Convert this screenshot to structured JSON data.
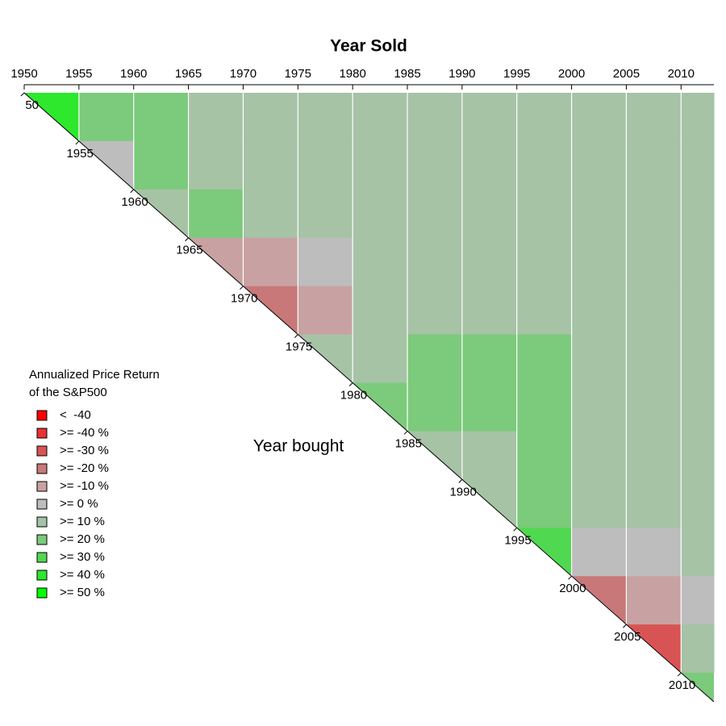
{
  "chart_data": {
    "type": "heatmap",
    "title": "Year Sold",
    "ylabel": "Year bought",
    "legend_title": [
      "Annualized Price Return",
      "of the S&P500"
    ],
    "bins": [
      1950,
      1955,
      1960,
      1965,
      1970,
      1975,
      1980,
      1985,
      1990,
      1995,
      2000,
      2005,
      2010,
      2013
    ],
    "xlim": [
      1950,
      2013
    ],
    "ylim": [
      1950,
      2013
    ],
    "xticks": [
      1950,
      1955,
      1960,
      1965,
      1970,
      1975,
      1980,
      1985,
      1990,
      1995,
      2000,
      2005,
      2010
    ],
    "yticks": [
      {
        "value": 1950,
        "label": "50"
      },
      1955,
      1960,
      1965,
      1970,
      1975,
      1980,
      1985,
      1990,
      1995,
      2000,
      2005,
      2010
    ],
    "z": [
      [
        45,
        25,
        20,
        12,
        12,
        12,
        12,
        12,
        12,
        12,
        12,
        12,
        12
      ],
      [
        5,
        22,
        12,
        12,
        12,
        12,
        12,
        12,
        12,
        12,
        12,
        12
      ],
      [
        15,
        22,
        12,
        12,
        12,
        12,
        12,
        12,
        12,
        12,
        12
      ],
      [
        -5,
        -5,
        5,
        12,
        12,
        12,
        12,
        12,
        12,
        12
      ],
      [
        -15,
        -5,
        12,
        12,
        12,
        12,
        12,
        12,
        12
      ],
      [
        15,
        15,
        22,
        22,
        22,
        12,
        12,
        12
      ],
      [
        20,
        22,
        22,
        25,
        12,
        12,
        12
      ],
      [
        15,
        15,
        22,
        12,
        12,
        12
      ],
      [
        12,
        25,
        12,
        12,
        12
      ],
      [
        35,
        5,
        5,
        12
      ],
      [
        -15,
        -5,
        5
      ],
      [
        -25,
        12
      ],
      [
        22
      ]
    ],
    "breaks": [
      -40,
      -30,
      -20,
      -10,
      0,
      10,
      20,
      30,
      40,
      50
    ],
    "colors": [
      "#ff0000",
      "#e83232",
      "#d85454",
      "#c87878",
      "#c8a2a2",
      "#bdbdbd",
      "#a6c3a6",
      "#7cca7c",
      "#50d850",
      "#2ee82e",
      "#00ff00"
    ],
    "legend_labels": [
      "<  -40",
      ">= -40 %",
      ">= -30 %",
      ">= -20 %",
      ">= -10 %",
      ">= 0 %",
      ">= 10 %",
      ">= 20 %",
      ">= 30 %",
      ">= 40 %",
      ">= 50 %"
    ]
  }
}
